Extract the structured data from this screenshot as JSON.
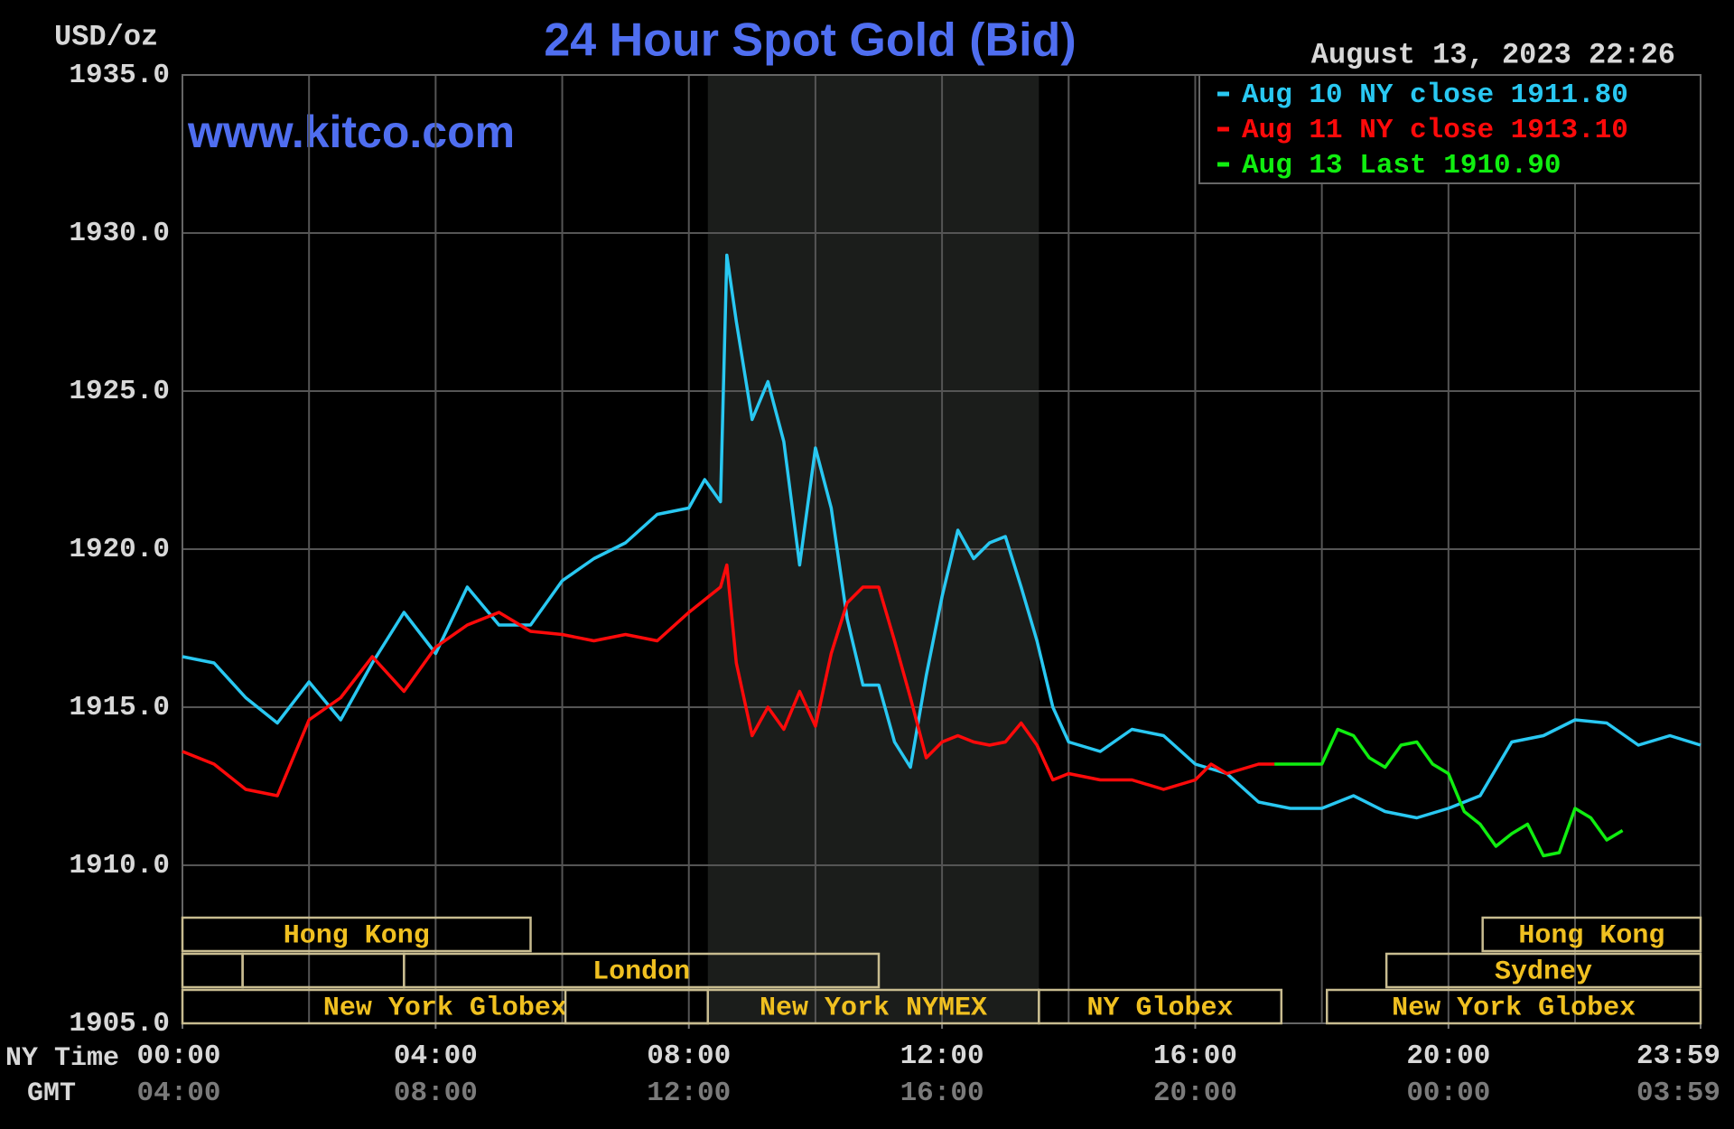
{
  "chart_data": {
    "type": "line",
    "title": "24 Hour Spot Gold (Bid)",
    "unit_label": "USD/oz",
    "timestamp": "August 13, 2023 22:26",
    "watermark": "www.kitco.com",
    "x_axis_label": "NY Time",
    "x2_axis_label": "GMT",
    "xlim": [
      0,
      23.983
    ],
    "ylim": [
      1905,
      1935
    ],
    "grid": true,
    "xgrid_step": 2,
    "legend": "top-right",
    "shade": [
      8.3,
      13.53
    ],
    "xticks": [
      {
        "value": 0,
        "label": "00:00"
      },
      {
        "value": 4,
        "label": "04:00"
      },
      {
        "value": 8,
        "label": "08:00"
      },
      {
        "value": 12,
        "label": "12:00"
      },
      {
        "value": 16,
        "label": "16:00"
      },
      {
        "value": 20,
        "label": "20:00"
      },
      {
        "value": 23.983,
        "label": "23:59"
      }
    ],
    "x2ticks": [
      {
        "value": 0,
        "label": "04:00"
      },
      {
        "value": 4,
        "label": "08:00"
      },
      {
        "value": 8,
        "label": "12:00"
      },
      {
        "value": 12,
        "label": "16:00"
      },
      {
        "value": 16,
        "label": "20:00"
      },
      {
        "value": 20,
        "label": "00:00"
      },
      {
        "value": 23.983,
        "label": "03:59"
      }
    ],
    "yticks": [
      {
        "value": 1935,
        "label": "1935.0"
      },
      {
        "value": 1930,
        "label": "1930.0"
      },
      {
        "value": 1925,
        "label": "1925.0"
      },
      {
        "value": 1920,
        "label": "1920.0"
      },
      {
        "value": 1915,
        "label": "1915.0"
      },
      {
        "value": 1910,
        "label": "1910.0"
      },
      {
        "value": 1905,
        "label": "1905.0"
      }
    ],
    "sessions": [
      {
        "label": "Hong Kong",
        "row": 0,
        "start": 0,
        "end": 5.5
      },
      {
        "row": 1,
        "start": 0,
        "end": 0.95
      },
      {
        "row": 1,
        "start": 0.95,
        "end": 3.5
      },
      {
        "label": "London",
        "row": 1,
        "start": 3.5,
        "end": 11
      },
      {
        "label": "New York Globex",
        "row": 2,
        "start": 0,
        "end": 8.3
      },
      {
        "row": 2,
        "start": 6.05,
        "end": 8.3
      },
      {
        "label": "New York NYMEX",
        "row": 2,
        "start": 8.3,
        "end": 13.53
      },
      {
        "label": "NY Globex",
        "row": 2,
        "start": 13.53,
        "end": 17.36
      },
      {
        "label": "Hong Kong",
        "row": 0,
        "start": 20.54,
        "end": 24
      },
      {
        "label": "Sydney",
        "row": 1,
        "start": 19.02,
        "end": 24
      },
      {
        "label": "New York Globex",
        "row": 2,
        "start": 18.08,
        "end": 24
      }
    ],
    "series": [
      {
        "name": "Aug 10 NY close 1911.80",
        "color": "#29c8f2",
        "x": [
          0,
          0.5,
          1,
          1.5,
          2,
          2.5,
          3,
          3.5,
          4,
          4.5,
          5,
          5.5,
          6,
          6.5,
          7,
          7.5,
          8,
          8.25,
          8.5,
          8.6,
          8.75,
          9,
          9.25,
          9.5,
          9.75,
          10,
          10.25,
          10.5,
          10.75,
          11,
          11.25,
          11.5,
          11.75,
          12,
          12.25,
          12.5,
          12.75,
          13,
          13.25,
          13.5,
          13.75,
          14,
          14.5,
          15,
          15.5,
          16,
          16.5,
          17,
          17.5,
          18,
          18.5,
          19,
          19.5,
          20,
          20.5,
          21,
          21.5,
          22,
          22.5,
          23,
          23.5,
          23.983
        ],
        "values": [
          1916.6,
          1916.4,
          1915.3,
          1914.5,
          1915.8,
          1914.6,
          1916.4,
          1918.0,
          1916.7,
          1918.8,
          1917.6,
          1917.6,
          1919.0,
          1919.7,
          1920.2,
          1921.1,
          1921.3,
          1922.2,
          1921.5,
          1929.3,
          1927.2,
          1924.1,
          1925.3,
          1923.4,
          1919.5,
          1923.2,
          1921.3,
          1917.8,
          1915.7,
          1915.7,
          1913.9,
          1913.1,
          1916.0,
          1918.5,
          1920.6,
          1919.7,
          1920.2,
          1920.4,
          1918.8,
          1917.1,
          1915.0,
          1913.9,
          1913.6,
          1914.3,
          1914.1,
          1913.2,
          1912.9,
          1912.0,
          1911.8,
          1911.8,
          1912.2,
          1911.7,
          1911.5,
          1911.8,
          1912.2,
          1913.9,
          1914.1,
          1914.6,
          1914.5,
          1913.8,
          1914.1,
          1913.8
        ]
      },
      {
        "name": "Aug 11 NY close 1913.10",
        "color": "#ff0a0a",
        "x": [
          0,
          0.5,
          1,
          1.5,
          2,
          2.5,
          3,
          3.5,
          4,
          4.5,
          5,
          5.5,
          6,
          6.5,
          7,
          7.5,
          8,
          8.5,
          8.6,
          8.75,
          9,
          9.25,
          9.5,
          9.75,
          10,
          10.25,
          10.5,
          10.75,
          11,
          11.25,
          11.5,
          11.75,
          12,
          12.25,
          12.5,
          12.75,
          13,
          13.25,
          13.5,
          13.75,
          14,
          14.5,
          15,
          15.5,
          16,
          16.25,
          16.5,
          17,
          17.25
        ],
        "values": [
          1913.6,
          1913.2,
          1912.4,
          1912.2,
          1914.6,
          1915.3,
          1916.6,
          1915.5,
          1916.9,
          1917.6,
          1918.0,
          1917.4,
          1917.3,
          1917.1,
          1917.3,
          1917.1,
          1918.0,
          1918.8,
          1919.5,
          1916.4,
          1914.1,
          1915.0,
          1914.3,
          1915.5,
          1914.4,
          1916.7,
          1918.3,
          1918.8,
          1918.8,
          1917.1,
          1915.3,
          1913.4,
          1913.9,
          1914.1,
          1913.9,
          1913.8,
          1913.9,
          1914.5,
          1913.8,
          1912.7,
          1912.9,
          1912.7,
          1912.7,
          1912.4,
          1912.7,
          1913.2,
          1912.9,
          1913.2,
          1913.2
        ]
      },
      {
        "name": "Aug 13 Last 1910.90",
        "color": "#10ee10",
        "x": [
          17.25,
          17.5,
          18,
          18.25,
          18.5,
          18.75,
          19,
          19.25,
          19.5,
          19.75,
          20,
          20.25,
          20.5,
          20.75,
          21,
          21.25,
          21.5,
          21.75,
          22,
          22.25,
          22.5,
          22.75
        ],
        "values": [
          1913.2,
          1913.2,
          1913.2,
          1914.3,
          1914.1,
          1913.4,
          1913.1,
          1913.8,
          1913.9,
          1913.2,
          1912.9,
          1911.7,
          1911.3,
          1910.6,
          1911.0,
          1911.3,
          1910.3,
          1910.4,
          1911.8,
          1911.5,
          1910.8,
          1911.1
        ]
      }
    ]
  }
}
